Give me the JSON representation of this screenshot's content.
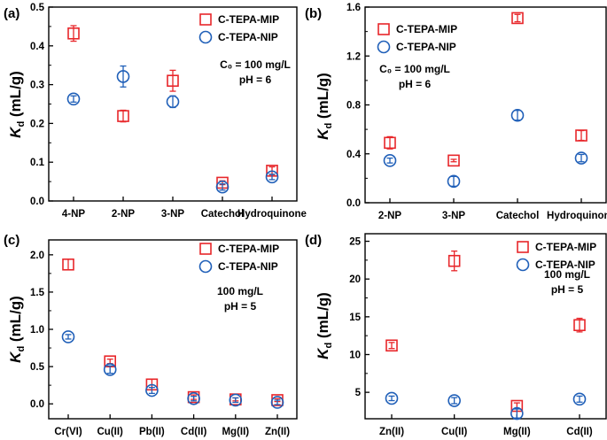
{
  "legend": {
    "mip_label": "C-TEPA-MIP",
    "nip_label": "C-TEPA-NIP"
  },
  "colors": {
    "mip": "#e8262a",
    "nip": "#1f5fb8",
    "axis": "#000000"
  },
  "chart_data": [
    {
      "id": "a",
      "panel_label": "(a)",
      "type": "scatter",
      "ylabel_main": "K",
      "ylabel_sub": "d",
      "ylabel_unit": " (mL/g)",
      "categories": [
        "4-NP",
        "2-NP",
        "3-NP",
        "Catechol",
        "Hydroquinone"
      ],
      "ylim": [
        0,
        0.5
      ],
      "yticks": [
        0.0,
        0.1,
        0.2,
        0.3,
        0.4,
        0.5
      ],
      "tick_decimals": 1,
      "legend_position": "top-right",
      "annotation": [
        "C₀ = 100 mg/L",
        "pH = 6"
      ],
      "series": [
        {
          "name": "C-TEPA-MIP",
          "marker": "square",
          "values": [
            0.432,
            0.219,
            0.31,
            0.047,
            0.078
          ],
          "errors": [
            0.02,
            0.015,
            0.027,
            0.005,
            0.01
          ]
        },
        {
          "name": "C-TEPA-NIP",
          "marker": "circle",
          "values": [
            0.263,
            0.321,
            0.256,
            0.036,
            0.062
          ],
          "errors": [
            0.008,
            0.027,
            0.015,
            0.008,
            0.007
          ]
        }
      ]
    },
    {
      "id": "b",
      "panel_label": "(b)",
      "type": "scatter",
      "ylabel_main": "K",
      "ylabel_sub": "d",
      "ylabel_unit": " (mL/g)",
      "categories": [
        "2-NP",
        "3-NP",
        "Catechol",
        "Hydroquinone"
      ],
      "ylim": [
        0,
        1.6
      ],
      "yticks": [
        0.0,
        0.4,
        0.8,
        1.2,
        1.6
      ],
      "tick_decimals": 1,
      "legend_position": "top-left",
      "annotation": [
        "C₀ = 100 mg/L",
        "pH = 6"
      ],
      "series": [
        {
          "name": "C-TEPA-MIP",
          "marker": "square",
          "values": [
            0.49,
            0.345,
            1.51,
            0.55
          ],
          "errors": [
            0.05,
            0.01,
            0.03,
            0.04
          ]
        },
        {
          "name": "C-TEPA-NIP",
          "marker": "circle",
          "values": [
            0.345,
            0.175,
            0.715,
            0.365
          ],
          "errors": [
            0.02,
            0.04,
            0.04,
            0.03
          ]
        }
      ]
    },
    {
      "id": "c",
      "panel_label": "(c)",
      "type": "scatter",
      "ylabel_main": "K",
      "ylabel_sub": "d",
      "ylabel_unit": " (mL/g)",
      "categories": [
        "Cr(VI)",
        "Cu(II)",
        "Pb(II)",
        "Cd(II)",
        "Mg(II)",
        "Zn(II)"
      ],
      "ylim": [
        -0.2,
        2.2
      ],
      "yticks": [
        0.0,
        0.5,
        1.0,
        1.5,
        2.0
      ],
      "tick_decimals": 1,
      "legend_position": "top-right",
      "annotation": [
        "100 mg/L",
        "pH = 5"
      ],
      "series": [
        {
          "name": "C-TEPA-MIP",
          "marker": "square",
          "values": [
            1.87,
            0.57,
            0.26,
            0.09,
            0.06,
            0.05
          ],
          "errors": [
            0.07,
            0.03,
            0.07,
            0.03,
            0.02,
            0.02
          ]
        },
        {
          "name": "C-TEPA-NIP",
          "marker": "circle",
          "values": [
            0.9,
            0.46,
            0.18,
            0.07,
            0.05,
            0.02
          ],
          "errors": [
            0.03,
            0.05,
            0.04,
            0.03,
            0.03,
            0.03
          ]
        }
      ]
    },
    {
      "id": "d",
      "panel_label": "(d)",
      "type": "scatter",
      "ylabel_main": "K",
      "ylabel_sub": "d",
      "ylabel_unit": " (mL/g)",
      "categories": [
        "Zn(II)",
        "Cu(II)",
        "Mg(II)",
        "Cd(II)"
      ],
      "ylim": [
        1.5,
        26
      ],
      "yticks": [
        5,
        10,
        15,
        20,
        25
      ],
      "tick_decimals": 0,
      "legend_position": "top-right",
      "annotation": [
        "100 mg/L",
        "pH = 5"
      ],
      "series": [
        {
          "name": "C-TEPA-MIP",
          "marker": "square",
          "values": [
            11.2,
            22.4,
            3.2,
            13.9
          ],
          "errors": [
            0.4,
            1.3,
            0.4,
            0.9
          ]
        },
        {
          "name": "C-TEPA-NIP",
          "marker": "circle",
          "values": [
            4.2,
            3.9,
            2.2,
            4.1
          ],
          "errors": [
            0.3,
            0.4,
            0.6,
            0.4
          ]
        }
      ]
    }
  ]
}
